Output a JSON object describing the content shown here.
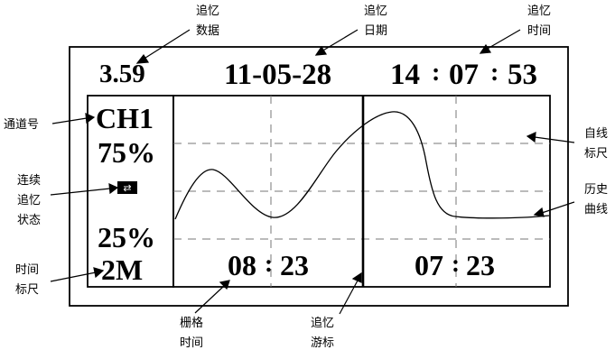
{
  "top_readout": {
    "value": "3.59",
    "date": "11-05-28",
    "time_h": "14",
    "time_m": "07",
    "time_s": "53"
  },
  "left_panel": {
    "channel": "CH1",
    "upper_percent": "75%",
    "state_symbol": "⇄",
    "lower_percent": "25%",
    "time_scale": "2M"
  },
  "grid_times": [
    {
      "h": "08",
      "m": "23"
    },
    {
      "h": "07",
      "m": "23"
    }
  ],
  "annotations": {
    "recall_value": [
      "追忆",
      "数据"
    ],
    "recall_date": [
      "追忆",
      "日期"
    ],
    "recall_time": [
      "追忆",
      "时间"
    ],
    "channel_no": [
      "通道号"
    ],
    "recall_state": [
      "连续",
      "追忆",
      "状态"
    ],
    "time_scale": [
      "时间",
      "标尺"
    ],
    "grid_time": [
      "栅格",
      "时间"
    ],
    "recall_cursor": [
      "追忆",
      "游标"
    ],
    "auto_scale": [
      "自线",
      "标尺"
    ],
    "history_curve": [
      "历史",
      "曲线"
    ]
  },
  "curve_samples": {
    "note_units": "percent of scale (0-100), sampled left-to-right across plot",
    "y": [
      21,
      40,
      52,
      49,
      36,
      25,
      21,
      30,
      48,
      66,
      78,
      85,
      82,
      60,
      34,
      27,
      25,
      25,
      25
    ]
  }
}
